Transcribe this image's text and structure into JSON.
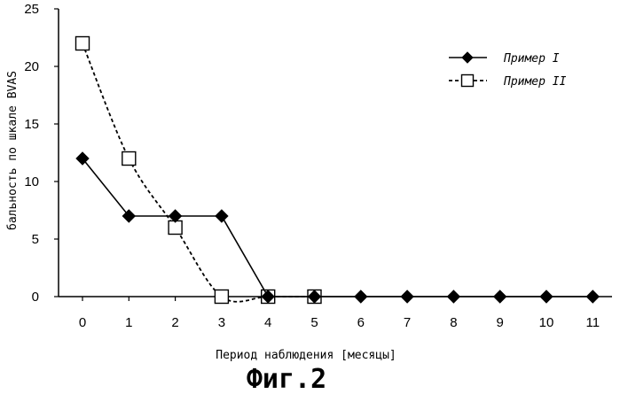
{
  "chart_data": {
    "type": "line",
    "xlabel": "Период наблюдения [месяцы]",
    "ylabel": "бальность по шкале BVAS",
    "caption": "Фиг.2",
    "x": [
      0,
      1,
      2,
      3,
      4,
      5,
      6,
      7,
      8,
      9,
      10,
      11
    ],
    "x_tick_labels": [
      "0",
      "1",
      "2",
      "3",
      "4",
      "5",
      "6",
      "7",
      "8",
      "9",
      "10",
      "11"
    ],
    "y_ticks": [
      0,
      5,
      10,
      15,
      20,
      25
    ],
    "y_tick_labels": [
      "0",
      "5",
      "10",
      "15",
      "20",
      "25"
    ],
    "ylim": [
      0,
      25
    ],
    "grid": false,
    "legend_position": "top-right",
    "series": [
      {
        "name": "Пример I",
        "x": [
          0,
          1,
          2,
          3,
          4,
          5,
          6,
          7,
          8,
          9,
          10,
          11
        ],
        "values": [
          12,
          7,
          7,
          7,
          0,
          0,
          0,
          0,
          0,
          0,
          0,
          0
        ],
        "marker": "filled-diamond",
        "line": "solid",
        "color": "#000000"
      },
      {
        "name": "Пример II",
        "x": [
          0,
          1,
          2,
          3,
          4,
          5
        ],
        "values": [
          22,
          12,
          6,
          0,
          0,
          0
        ],
        "marker": "open-square",
        "line": "dashed",
        "color": "#000000"
      }
    ]
  }
}
